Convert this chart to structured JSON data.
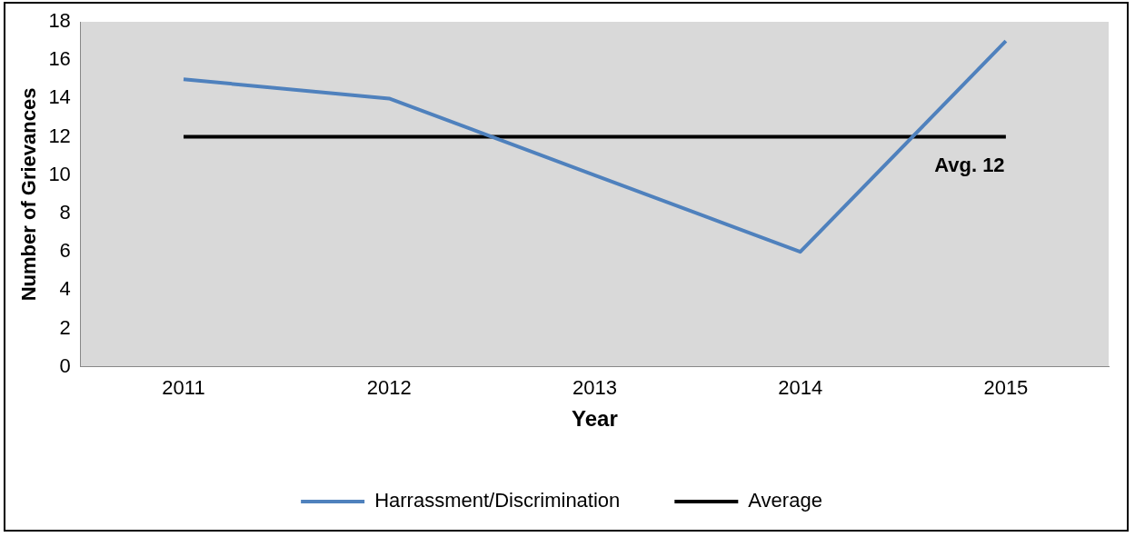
{
  "chart_data": {
    "type": "line",
    "xlabel": "Year",
    "ylabel": "Number of Grievances",
    "categories": [
      "2011",
      "2012",
      "2013",
      "2014",
      "2015"
    ],
    "series": [
      {
        "name": "Harrassment/Discrimination",
        "color": "#4f81bd",
        "values": [
          15,
          14,
          10,
          6,
          17
        ]
      },
      {
        "name": "Average",
        "color": "#000000",
        "values": [
          12,
          12,
          12,
          12,
          12
        ]
      }
    ],
    "ylim": [
      0,
      18
    ],
    "yticks": [
      0,
      2,
      4,
      6,
      8,
      10,
      12,
      14,
      16,
      18
    ],
    "grid": false,
    "legend": "bottom",
    "marker": "none",
    "line_style": "solid",
    "annotations": [
      {
        "text": "Avg. 12",
        "x": "2015",
        "y": 12
      }
    ]
  }
}
